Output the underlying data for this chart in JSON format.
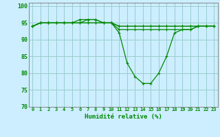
{
  "xlabel": "Humidité relative (%)",
  "background_color": "#cceeff",
  "grid_color": "#99cccc",
  "line_color": "#008800",
  "xlim": [
    -0.5,
    23.5
  ],
  "ylim": [
    70,
    101
  ],
  "yticks": [
    70,
    75,
    80,
    85,
    90,
    95,
    100
  ],
  "xticks": [
    0,
    1,
    2,
    3,
    4,
    5,
    6,
    7,
    8,
    9,
    10,
    11,
    12,
    13,
    14,
    15,
    16,
    17,
    18,
    19,
    20,
    21,
    22,
    23
  ],
  "series": [
    [
      94,
      95,
      95,
      95,
      95,
      95,
      95,
      96,
      96,
      95,
      95,
      92,
      83,
      79,
      77,
      77,
      80,
      85,
      92,
      93,
      93,
      94,
      94,
      94
    ],
    [
      94,
      95,
      95,
      95,
      95,
      95,
      96,
      96,
      96,
      95,
      95,
      93,
      93,
      93,
      93,
      93,
      93,
      93,
      93,
      93,
      93,
      94,
      94,
      94
    ],
    [
      94,
      95,
      95,
      95,
      95,
      95,
      95,
      95,
      95,
      95,
      95,
      94,
      94,
      94,
      94,
      94,
      94,
      94,
      94,
      94,
      94,
      94,
      94,
      94
    ],
    [
      94,
      95,
      95,
      95,
      95,
      95,
      95,
      95,
      95,
      95,
      95,
      94,
      94,
      94,
      94,
      94,
      94,
      94,
      94,
      94,
      94,
      94,
      94,
      94
    ]
  ]
}
